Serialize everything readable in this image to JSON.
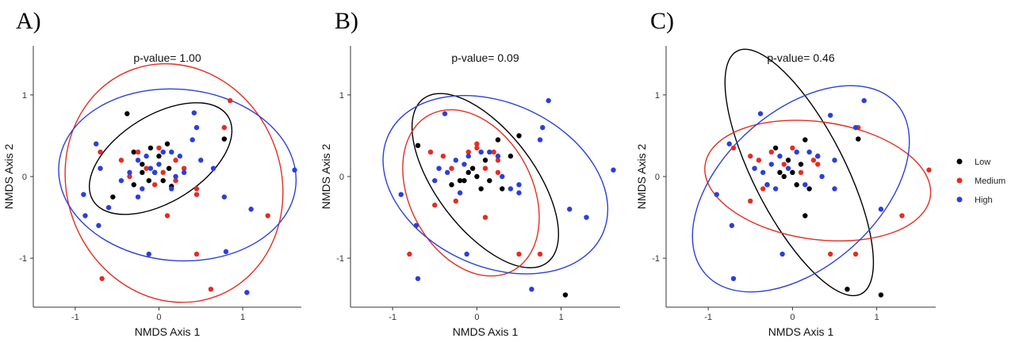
{
  "colors": {
    "Low": "#000000",
    "Medium": "#e32d22",
    "High": "#2b3fd9"
  },
  "legend": [
    {
      "label": "Low",
      "color": "#000000"
    },
    {
      "label": "Medium",
      "color": "#e32d22"
    },
    {
      "label": "High",
      "color": "#2b3fd9"
    }
  ],
  "chart_data": [
    {
      "type": "scatter",
      "panel_label": "A)",
      "annotation": "p-value= 1.00",
      "xlabel": "NMDS Axis 1",
      "ylabel": "NMDS Axis 2",
      "xlim": [
        -1.5,
        1.7
      ],
      "ylim": [
        -1.6,
        1.6
      ],
      "x_ticks": [
        -1,
        0,
        1
      ],
      "y_ticks": [
        -1,
        0,
        1
      ],
      "grid": false,
      "series": [
        {
          "name": "Low",
          "color": "#000000",
          "points": [
            [
              -0.38,
              0.77
            ],
            [
              -0.3,
              0.3
            ],
            [
              -0.2,
              0.15
            ],
            [
              -0.1,
              0.35
            ],
            [
              0.0,
              0.25
            ],
            [
              0.1,
              0.4
            ],
            [
              -0.3,
              -0.1
            ],
            [
              -0.05,
              0.05
            ],
            [
              -0.2,
              0.05
            ],
            [
              0.05,
              -0.05
            ],
            [
              0.12,
              0.1
            ],
            [
              -0.55,
              -0.25
            ],
            [
              0.78,
              0.46
            ],
            [
              0.15,
              -0.12
            ],
            [
              -0.12,
              -0.05
            ]
          ],
          "ellipse": {
            "cx": 0.02,
            "cy": 0.22,
            "rx": 0.95,
            "ry": 0.53,
            "angle_deg": 32
          }
        },
        {
          "name": "Medium",
          "color": "#e32d22",
          "points": [
            [
              0.85,
              0.93
            ],
            [
              0.78,
              0.6
            ],
            [
              -0.7,
              0.3
            ],
            [
              -0.45,
              0.2
            ],
            [
              -0.25,
              0.3
            ],
            [
              0.0,
              0.35
            ],
            [
              0.2,
              0.2
            ],
            [
              -0.35,
              0.0
            ],
            [
              0.45,
              -0.15
            ],
            [
              0.45,
              -0.22
            ],
            [
              1.3,
              -0.48
            ],
            [
              0.1,
              -0.48
            ],
            [
              -0.68,
              -1.25
            ],
            [
              0.45,
              -0.95
            ],
            [
              0.62,
              -1.38
            ],
            [
              0.3,
              0.1
            ],
            [
              -0.15,
              0.1
            ],
            [
              0.05,
              0.05
            ],
            [
              -0.05,
              -0.1
            ],
            [
              0.2,
              -0.05
            ]
          ],
          "ellipse": {
            "cx": 0.18,
            "cy": -0.08,
            "rx": 1.28,
            "ry": 1.48,
            "angle_deg": 20
          }
        },
        {
          "name": "High",
          "color": "#2b3fd9",
          "points": [
            [
              1.62,
              0.08
            ],
            [
              1.1,
              -0.4
            ],
            [
              -0.9,
              -0.22
            ],
            [
              -0.72,
              -0.6
            ],
            [
              -0.88,
              -0.48
            ],
            [
              -0.75,
              0.4
            ],
            [
              -0.7,
              0.1
            ],
            [
              -0.6,
              -0.38
            ],
            [
              -0.45,
              -0.05
            ],
            [
              -0.35,
              0.05
            ],
            [
              -0.25,
              0.2
            ],
            [
              -0.15,
              0.25
            ],
            [
              -0.1,
              0.1
            ],
            [
              -0.05,
              0.05
            ],
            [
              0.0,
              0.15
            ],
            [
              0.05,
              0.3
            ],
            [
              0.15,
              0.3
            ],
            [
              0.25,
              0.25
            ],
            [
              0.3,
              0.05
            ],
            [
              0.4,
              0.45
            ],
            [
              0.42,
              0.78
            ],
            [
              0.45,
              0.6
            ],
            [
              0.5,
              0.2
            ],
            [
              0.2,
              0.0
            ],
            [
              0.15,
              -0.15
            ],
            [
              -0.2,
              -0.15
            ],
            [
              -0.12,
              -0.95
            ],
            [
              0.8,
              -0.92
            ],
            [
              0.78,
              -0.25
            ],
            [
              1.05,
              -1.42
            ],
            [
              -0.25,
              -0.25
            ],
            [
              0.65,
              0.1
            ]
          ],
          "ellipse": {
            "cx": 0.22,
            "cy": 0.02,
            "rx": 1.42,
            "ry": 1.05,
            "angle_deg": -5
          }
        }
      ]
    },
    {
      "type": "scatter",
      "panel_label": "B)",
      "annotation": "p-value= 0.09",
      "xlabel": "NMDS Axis 1",
      "ylabel": "NMDS Axis 2",
      "xlim": [
        -1.5,
        1.7
      ],
      "ylim": [
        -1.6,
        1.6
      ],
      "x_ticks": [
        -1,
        0,
        1
      ],
      "y_ticks": [
        -1,
        0,
        1
      ],
      "grid": false,
      "series": [
        {
          "name": "Low",
          "color": "#000000",
          "points": [
            [
              -0.7,
              0.38
            ],
            [
              0.5,
              0.5
            ],
            [
              0.4,
              0.25
            ],
            [
              0.25,
              0.45
            ],
            [
              0.1,
              0.2
            ],
            [
              -0.1,
              0.05
            ],
            [
              -0.2,
              -0.05
            ],
            [
              -0.05,
              0.1
            ],
            [
              -0.3,
              -0.1
            ],
            [
              0.05,
              -0.15
            ],
            [
              0.15,
              -0.05
            ],
            [
              0.3,
              -0.15
            ],
            [
              1.05,
              -1.45
            ],
            [
              -0.15,
              -0.05
            ],
            [
              0.0,
              0.0
            ]
          ],
          "ellipse": {
            "cx": 0.1,
            "cy": -0.05,
            "rx": 1.22,
            "ry": 0.6,
            "angle_deg": -53
          }
        },
        {
          "name": "Medium",
          "color": "#e32d22",
          "points": [
            [
              -0.8,
              -0.95
            ],
            [
              -0.55,
              0.3
            ],
            [
              -0.5,
              -0.35
            ],
            [
              -0.4,
              0.25
            ],
            [
              -0.3,
              0.1
            ],
            [
              -0.1,
              0.3
            ],
            [
              0.0,
              0.35
            ],
            [
              0.1,
              0.1
            ],
            [
              0.25,
              0.2
            ],
            [
              0.25,
              0.05
            ],
            [
              0.5,
              -0.95
            ],
            [
              0.75,
              -0.95
            ],
            [
              0.0,
              0.4
            ],
            [
              0.1,
              -0.5
            ],
            [
              -0.25,
              -0.3
            ],
            [
              0.2,
              0.3
            ]
          ],
          "ellipse": {
            "cx": -0.07,
            "cy": -0.2,
            "rx": 1.05,
            "ry": 0.75,
            "angle_deg": -62
          }
        },
        {
          "name": "High",
          "color": "#2b3fd9",
          "points": [
            [
              1.62,
              0.08
            ],
            [
              1.3,
              -0.5
            ],
            [
              1.1,
              -0.4
            ],
            [
              0.85,
              0.93
            ],
            [
              0.78,
              0.6
            ],
            [
              0.75,
              0.45
            ],
            [
              -0.38,
              0.77
            ],
            [
              -0.9,
              -0.22
            ],
            [
              -0.72,
              -0.6
            ],
            [
              -0.7,
              -1.25
            ],
            [
              -0.12,
              -0.95
            ],
            [
              0.65,
              -1.38
            ],
            [
              -0.45,
              0.1
            ],
            [
              -0.35,
              0.05
            ],
            [
              -0.25,
              0.2
            ],
            [
              -0.15,
              0.15
            ],
            [
              -0.1,
              0.25
            ],
            [
              0.05,
              0.3
            ],
            [
              0.15,
              0.3
            ],
            [
              0.25,
              0.25
            ],
            [
              0.4,
              -0.15
            ],
            [
              0.5,
              -0.2
            ],
            [
              0.5,
              -0.1
            ],
            [
              -0.5,
              -0.05
            ],
            [
              -0.2,
              -0.2
            ],
            [
              0.3,
              0.0
            ]
          ],
          "ellipse": {
            "cx": 0.22,
            "cy": -0.1,
            "rx": 1.4,
            "ry": 1.0,
            "angle_deg": -25
          }
        }
      ]
    },
    {
      "type": "scatter",
      "panel_label": "C)",
      "annotation": "p-value= 0.46",
      "xlabel": "NMDS Axis 1",
      "ylabel": "NMDS Axis 2",
      "xlim": [
        -1.5,
        1.7
      ],
      "ylim": [
        -1.6,
        1.6
      ],
      "x_ticks": [
        -1,
        0,
        1
      ],
      "y_ticks": [
        -1,
        0,
        1
      ],
      "grid": false,
      "series": [
        {
          "name": "Low",
          "color": "#000000",
          "points": [
            [
              -0.2,
              0.35
            ],
            [
              0.15,
              0.45
            ],
            [
              0.3,
              0.25
            ],
            [
              0.78,
              0.46
            ],
            [
              0.0,
              0.05
            ],
            [
              -0.1,
              0.0
            ],
            [
              0.05,
              -0.1
            ],
            [
              0.2,
              -0.15
            ],
            [
              0.65,
              -1.38
            ],
            [
              1.05,
              -1.45
            ],
            [
              -0.3,
              -0.1
            ],
            [
              0.1,
              0.15
            ],
            [
              -0.05,
              0.2
            ],
            [
              0.15,
              -0.48
            ],
            [
              -0.15,
              0.05
            ]
          ],
          "ellipse": {
            "cx": 0.08,
            "cy": 0.05,
            "rx": 1.62,
            "ry": 0.56,
            "angle_deg": -63
          }
        },
        {
          "name": "Medium",
          "color": "#e32d22",
          "points": [
            [
              1.62,
              0.08
            ],
            [
              1.3,
              -0.48
            ],
            [
              0.45,
              -0.95
            ],
            [
              0.75,
              -0.95
            ],
            [
              0.78,
              0.6
            ],
            [
              -0.7,
              0.35
            ],
            [
              -0.5,
              0.25
            ],
            [
              -0.4,
              0.2
            ],
            [
              -0.25,
              0.3
            ],
            [
              0.0,
              0.35
            ],
            [
              0.25,
              0.2
            ],
            [
              0.3,
              0.15
            ],
            [
              -0.35,
              -0.15
            ],
            [
              -0.5,
              -0.3
            ],
            [
              0.1,
              0.05
            ],
            [
              -0.1,
              0.15
            ]
          ],
          "ellipse": {
            "cx": 0.3,
            "cy": -0.05,
            "rx": 1.35,
            "ry": 0.72,
            "angle_deg": -8
          }
        },
        {
          "name": "High",
          "color": "#2b3fd9",
          "points": [
            [
              0.85,
              0.93
            ],
            [
              0.45,
              0.75
            ],
            [
              -0.38,
              0.77
            ],
            [
              -0.75,
              0.4
            ],
            [
              -0.9,
              -0.22
            ],
            [
              -0.72,
              -0.6
            ],
            [
              -0.7,
              -1.25
            ],
            [
              -0.12,
              -0.95
            ],
            [
              1.05,
              -0.4
            ],
            [
              -0.45,
              0.1
            ],
            [
              -0.35,
              0.05
            ],
            [
              -0.25,
              0.15
            ],
            [
              -0.15,
              0.25
            ],
            [
              -0.05,
              0.1
            ],
            [
              0.05,
              0.3
            ],
            [
              0.2,
              0.3
            ],
            [
              0.3,
              0.25
            ],
            [
              0.5,
              0.2
            ],
            [
              0.5,
              -0.15
            ],
            [
              0.35,
              0.0
            ],
            [
              -0.2,
              -0.15
            ],
            [
              -0.3,
              -0.1
            ],
            [
              0.15,
              -0.1
            ],
            [
              0.75,
              0.6
            ]
          ],
          "ellipse": {
            "cx": 0.1,
            "cy": -0.15,
            "rx": 1.52,
            "ry": 0.95,
            "angle_deg": 42
          }
        }
      ]
    }
  ]
}
